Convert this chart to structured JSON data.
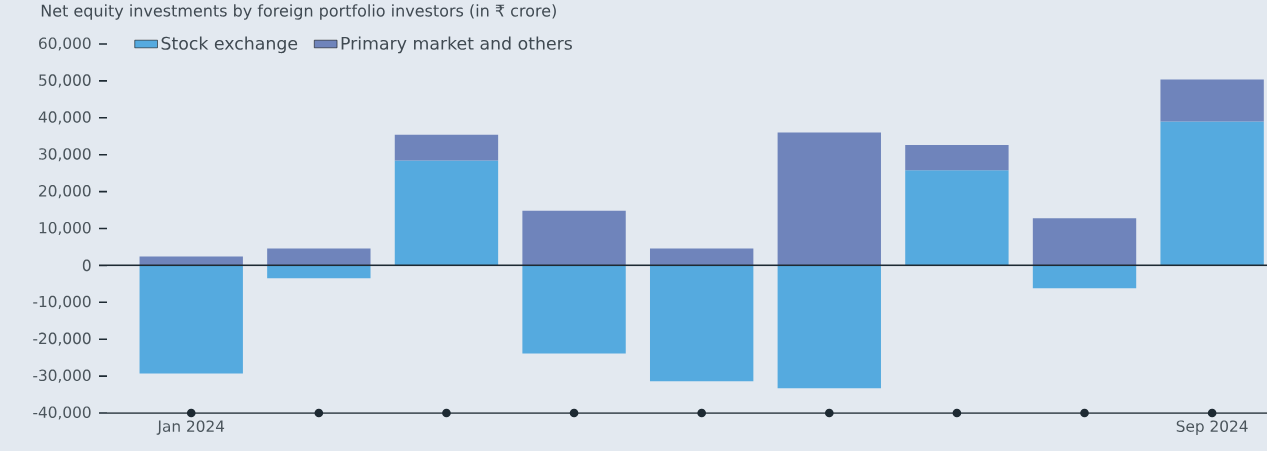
{
  "chart_data": {
    "type": "bar",
    "title": "Net equity investments by foreign portfolio investors (in ₹ crore)",
    "stacked": true,
    "categories": [
      "Jan 2024",
      null,
      null,
      null,
      null,
      null,
      null,
      null,
      "Sep 2024"
    ],
    "series": [
      {
        "name": "Stock exchange",
        "color": "#55aadf",
        "values": [
          -29300,
          -3500,
          28400,
          -23900,
          -31400,
          -33300,
          25800,
          -6200,
          39000
        ]
      },
      {
        "name": "Primary market and others",
        "color": "#6f84bb",
        "values": [
          2400,
          4600,
          7000,
          14800,
          4600,
          36000,
          6800,
          12800,
          11400
        ]
      }
    ],
    "ylim": [
      -40000,
      60000
    ],
    "yticks": [
      {
        "value": -40000,
        "label": "-40,000"
      },
      {
        "value": -30000,
        "label": "-30,000"
      },
      {
        "value": -20000,
        "label": "-20,000"
      },
      {
        "value": -10000,
        "label": "-10,000"
      },
      0,
      {
        "value": 10000,
        "label": "10,000"
      },
      {
        "value": 20000,
        "label": "20,000"
      },
      {
        "value": 30000,
        "label": "30,000"
      },
      {
        "value": 40000,
        "label": "40,000"
      },
      {
        "value": 50000,
        "label": "50,000"
      },
      {
        "value": 60000,
        "label": "60,000"
      }
    ],
    "ref_lines": [
      {
        "axis": "y",
        "value": 0,
        "color": "#1e2a33"
      }
    ],
    "legend": "top left"
  }
}
